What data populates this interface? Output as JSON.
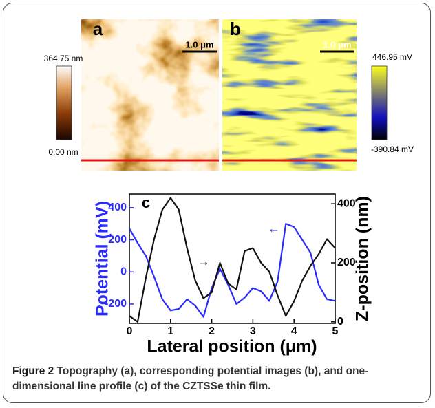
{
  "panels": {
    "a": {
      "label": "a",
      "scale_bar": "1.0 μm",
      "colorbar_max": "364.75 nm",
      "colorbar_min": "0.00 nm"
    },
    "b": {
      "label": "b",
      "scale_bar": "1.0 μm",
      "colorbar_max": "446.95 mV",
      "colorbar_min": "-390.84 mV"
    }
  },
  "chart_data": {
    "type": "line",
    "panel_label": "c",
    "x_label": "Lateral position (μm)",
    "y_label": "Potential (mV)",
    "y2_label": "Z-position (nm)",
    "annotations": [
      "←",
      "→"
    ],
    "x": [
      0,
      0.2,
      0.4,
      0.6,
      0.8,
      1.0,
      1.2,
      1.4,
      1.6,
      1.8,
      2.0,
      2.2,
      2.4,
      2.6,
      2.8,
      3.0,
      3.2,
      3.4,
      3.6,
      3.8,
      4.0,
      4.2,
      4.4,
      4.6,
      4.8,
      5.0
    ],
    "series": [
      {
        "color": "#2a2aff",
        "axis": "y",
        "values": [
          270,
          180,
          100,
          -30,
          -170,
          -240,
          -230,
          -170,
          -210,
          -280,
          -100,
          20,
          -80,
          -200,
          -160,
          -100,
          -120,
          -180,
          -60,
          300,
          280,
          200,
          120,
          -80,
          -170,
          -180
        ]
      },
      {
        "color": "#111111",
        "axis": "y2",
        "values": [
          20,
          0,
          150,
          280,
          380,
          420,
          380,
          250,
          140,
          80,
          100,
          200,
          130,
          110,
          240,
          250,
          200,
          170,
          90,
          20,
          70,
          140,
          190,
          230,
          280,
          250
        ]
      }
    ],
    "xlim": [
      0,
      5
    ],
    "xticks": [
      0,
      1,
      2,
      3,
      4,
      5
    ],
    "ylim": [
      -320,
      485
    ],
    "yticks": [
      -200,
      0,
      200,
      400
    ],
    "y2lim": [
      -5,
      433
    ],
    "y2ticks": [
      0,
      200,
      400
    ]
  },
  "caption": {
    "label": "Figure 2",
    "text": "Topography (a), corresponding potential images (b), and one-dimensional line profile (c) of the CZTSSe thin film."
  }
}
